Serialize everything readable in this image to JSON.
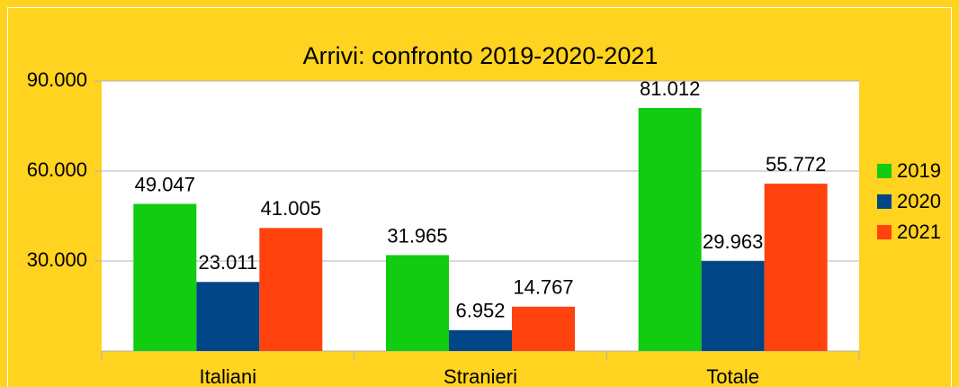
{
  "chart_data": {
    "type": "bar",
    "title": "Arrivi: confronto 2019-2020-2021",
    "categories": [
      "Italiani",
      "Stranieri",
      "Totale"
    ],
    "series": [
      {
        "name": "2019",
        "color": "#11cc11",
        "values": [
          49047,
          31965,
          81012
        ],
        "value_labels": [
          "49.047",
          "31.965",
          "81.012"
        ]
      },
      {
        "name": "2020",
        "color": "#004586",
        "values": [
          23011,
          6952,
          29963
        ],
        "value_labels": [
          "23.011",
          "6.952",
          "29.963"
        ]
      },
      {
        "name": "2021",
        "color": "#ff420e",
        "values": [
          41005,
          14767,
          55772
        ],
        "value_labels": [
          "41.005",
          "14.767",
          "55.772"
        ]
      }
    ],
    "ylim": [
      0,
      90000
    ],
    "yticks": [
      {
        "value": 30000,
        "label": "30.000"
      },
      {
        "value": 60000,
        "label": "60.000"
      },
      {
        "value": 90000,
        "label": "90.000"
      }
    ],
    "grid": true,
    "legend": "right"
  }
}
